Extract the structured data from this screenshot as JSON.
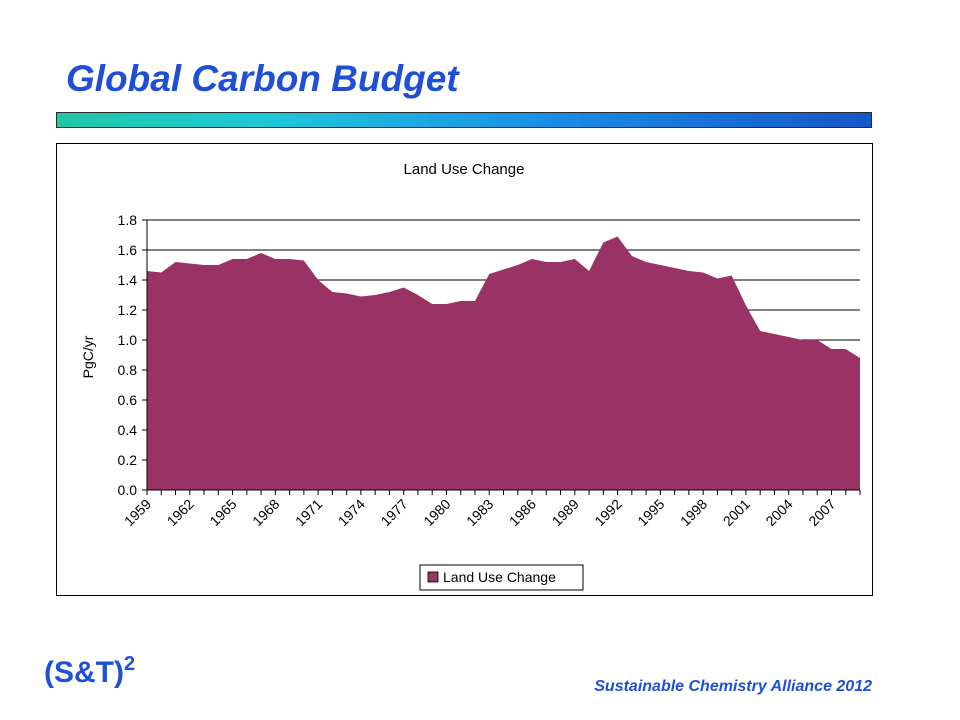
{
  "slide": {
    "title": "Global Carbon Budget",
    "footer_logo": "(S&T)",
    "footer_logo_superscript": "2",
    "footer_text": "Sustainable Chemistry Alliance 2012"
  },
  "colors": {
    "title": "#1f4fd6",
    "area_fill": "#993366",
    "gridline": "#000000"
  },
  "chart_data": {
    "type": "area",
    "title": "Land Use Change",
    "xlabel": "",
    "ylabel": "PgC/yr",
    "ylim": [
      0,
      1.8
    ],
    "yticks": [
      "0.0",
      "0.2",
      "0.4",
      "0.6",
      "0.8",
      "1.0",
      "1.2",
      "1.4",
      "1.6",
      "1.8"
    ],
    "grid": true,
    "legend_position": "bottom",
    "x": [
      1959,
      1960,
      1961,
      1962,
      1963,
      1964,
      1965,
      1966,
      1967,
      1968,
      1969,
      1970,
      1971,
      1972,
      1973,
      1974,
      1975,
      1976,
      1977,
      1978,
      1979,
      1980,
      1981,
      1982,
      1983,
      1984,
      1985,
      1986,
      1987,
      1988,
      1989,
      1990,
      1991,
      1992,
      1993,
      1994,
      1995,
      1996,
      1997,
      1998,
      1999,
      2000,
      2001,
      2002,
      2003,
      2004,
      2005,
      2006,
      2007,
      2008,
      2009
    ],
    "x_tick_labels": [
      "1959",
      "1962",
      "1965",
      "1968",
      "1971",
      "1974",
      "1977",
      "1980",
      "1983",
      "1986",
      "1989",
      "1992",
      "1995",
      "1998",
      "2001",
      "2004",
      "2007"
    ],
    "series": [
      {
        "name": "Land Use Change",
        "values": [
          1.46,
          1.45,
          1.52,
          1.51,
          1.5,
          1.5,
          1.54,
          1.54,
          1.58,
          1.54,
          1.54,
          1.53,
          1.4,
          1.32,
          1.31,
          1.29,
          1.3,
          1.32,
          1.35,
          1.3,
          1.24,
          1.24,
          1.26,
          1.26,
          1.44,
          1.47,
          1.5,
          1.54,
          1.52,
          1.52,
          1.54,
          1.46,
          1.65,
          1.69,
          1.56,
          1.52,
          1.5,
          1.48,
          1.46,
          1.45,
          1.41,
          1.43,
          1.23,
          1.06,
          1.04,
          1.02,
          1.0,
          1.0,
          0.94,
          0.94,
          0.88
        ]
      }
    ]
  }
}
